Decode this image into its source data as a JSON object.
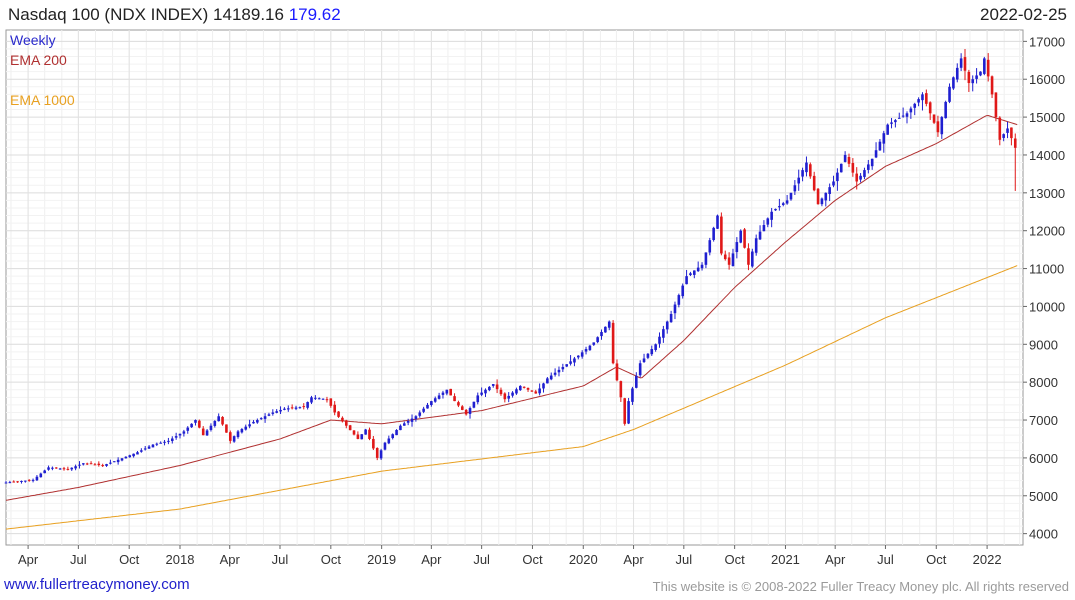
{
  "header": {
    "title": "Nasdaq 100 (NDX INDEX)",
    "last": "14189.16",
    "change": "179.62",
    "date": "2022-02-25"
  },
  "legend": {
    "weekly": "Weekly",
    "ema200": "EMA 200",
    "ema1000": "EMA 1000"
  },
  "footer": {
    "site": "www.fullertreacymoney.com",
    "copyright": "This website is © 2008-2022 Fuller Treacy Money plc. All rights reserved"
  },
  "colors": {
    "up": "#1f1fd0",
    "down": "#e01818",
    "ema200": "#b03030",
    "ema1000": "#e8a020",
    "grid": "#dcdcdc"
  },
  "chart_data": {
    "type": "candlestick",
    "interval": "weekly",
    "x_range": [
      "2017-02-20",
      "2022-03-07"
    ],
    "ylim": [
      3700,
      17300
    ],
    "y_ticks": [
      4000,
      5000,
      6000,
      7000,
      8000,
      9000,
      10000,
      11000,
      12000,
      13000,
      14000,
      15000,
      16000,
      17000
    ],
    "y_axis_side": "right",
    "x_ticks": [
      {
        "label": "Apr",
        "date": "2017-04-01"
      },
      {
        "label": "Jul",
        "date": "2017-07-01"
      },
      {
        "label": "Oct",
        "date": "2017-10-01"
      },
      {
        "label": "2018",
        "date": "2018-01-01"
      },
      {
        "label": "Apr",
        "date": "2018-04-01"
      },
      {
        "label": "Jul",
        "date": "2018-07-01"
      },
      {
        "label": "Oct",
        "date": "2018-10-01"
      },
      {
        "label": "2019",
        "date": "2019-01-01"
      },
      {
        "label": "Apr",
        "date": "2019-04-01"
      },
      {
        "label": "Jul",
        "date": "2019-07-01"
      },
      {
        "label": "Oct",
        "date": "2019-10-01"
      },
      {
        "label": "2020",
        "date": "2020-01-01"
      },
      {
        "label": "Apr",
        "date": "2020-04-01"
      },
      {
        "label": "Jul",
        "date": "2020-07-01"
      },
      {
        "label": "Oct",
        "date": "2020-10-01"
      },
      {
        "label": "2021",
        "date": "2021-01-01"
      },
      {
        "label": "Apr",
        "date": "2021-04-01"
      },
      {
        "label": "Jul",
        "date": "2021-07-01"
      },
      {
        "label": "Oct",
        "date": "2021-10-01"
      },
      {
        "label": "2022",
        "date": "2022-01-01"
      }
    ],
    "grid": true,
    "close_anchors": [
      [
        "2017-02-20",
        5350
      ],
      [
        "2017-03-13",
        5380
      ],
      [
        "2017-04-10",
        5420
      ],
      [
        "2017-05-08",
        5750
      ],
      [
        "2017-06-12",
        5700
      ],
      [
        "2017-07-10",
        5860
      ],
      [
        "2017-08-14",
        5800
      ],
      [
        "2017-09-11",
        5950
      ],
      [
        "2017-10-16",
        6150
      ],
      [
        "2017-11-13",
        6350
      ],
      [
        "2017-12-11",
        6450
      ],
      [
        "2018-01-08",
        6700
      ],
      [
        "2018-01-29",
        7000
      ],
      [
        "2018-02-12",
        6600
      ],
      [
        "2018-03-12",
        7100
      ],
      [
        "2018-04-02",
        6450
      ],
      [
        "2018-04-16",
        6700
      ],
      [
        "2018-05-14",
        6950
      ],
      [
        "2018-06-18",
        7200
      ],
      [
        "2018-07-09",
        7300
      ],
      [
        "2018-08-13",
        7350
      ],
      [
        "2018-08-27",
        7600
      ],
      [
        "2018-09-24",
        7550
      ],
      [
        "2018-10-08",
        7200
      ],
      [
        "2018-10-29",
        6850
      ],
      [
        "2018-11-19",
        6500
      ],
      [
        "2018-12-03",
        6750
      ],
      [
        "2018-12-24",
        6000
      ],
      [
        "2019-01-07",
        6400
      ],
      [
        "2019-02-04",
        6850
      ],
      [
        "2019-03-04",
        7100
      ],
      [
        "2019-04-01",
        7500
      ],
      [
        "2019-04-29",
        7800
      ],
      [
        "2019-05-13",
        7500
      ],
      [
        "2019-06-03",
        7150
      ],
      [
        "2019-06-24",
        7650
      ],
      [
        "2019-07-22",
        7950
      ],
      [
        "2019-08-12",
        7550
      ],
      [
        "2019-09-09",
        7900
      ],
      [
        "2019-10-07",
        7700
      ],
      [
        "2019-10-28",
        8100
      ],
      [
        "2019-11-25",
        8400
      ],
      [
        "2019-12-23",
        8700
      ],
      [
        "2020-01-20",
        9050
      ],
      [
        "2020-02-17",
        9600
      ],
      [
        "2020-02-24",
        8500
      ],
      [
        "2020-03-09",
        7600
      ],
      [
        "2020-03-16",
        6900
      ],
      [
        "2020-03-23",
        7500
      ],
      [
        "2020-04-13",
        8500
      ],
      [
        "2020-05-11",
        9000
      ],
      [
        "2020-06-08",
        9800
      ],
      [
        "2020-07-06",
        10800
      ],
      [
        "2020-08-03",
        11100
      ],
      [
        "2020-08-31",
        12400
      ],
      [
        "2020-09-07",
        11400
      ],
      [
        "2020-09-21",
        11100
      ],
      [
        "2020-10-12",
        12000
      ],
      [
        "2020-10-26",
        11100
      ],
      [
        "2020-11-09",
        11800
      ],
      [
        "2020-12-07",
        12500
      ],
      [
        "2021-01-04",
        12800
      ],
      [
        "2021-02-08",
        13800
      ],
      [
        "2021-03-01",
        12700
      ],
      [
        "2021-03-29",
        13300
      ],
      [
        "2021-04-19",
        14000
      ],
      [
        "2021-05-10",
        13300
      ],
      [
        "2021-06-07",
        13900
      ],
      [
        "2021-07-05",
        14800
      ],
      [
        "2021-08-09",
        15100
      ],
      [
        "2021-09-06",
        15600
      ],
      [
        "2021-10-04",
        14600
      ],
      [
        "2021-10-25",
        15800
      ],
      [
        "2021-11-15",
        16550
      ],
      [
        "2021-11-29",
        15900
      ],
      [
        "2021-12-20",
        16200
      ],
      [
        "2021-12-27",
        16550
      ],
      [
        "2022-01-10",
        15600
      ],
      [
        "2022-01-24",
        14400
      ],
      [
        "2022-02-07",
        14700
      ],
      [
        "2022-02-21",
        14189
      ]
    ],
    "ema200_anchors": [
      [
        "2017-02-20",
        4880
      ],
      [
        "2017-07-01",
        5220
      ],
      [
        "2018-01-01",
        5800
      ],
      [
        "2018-07-01",
        6500
      ],
      [
        "2018-10-01",
        7000
      ],
      [
        "2019-01-01",
        6900
      ],
      [
        "2019-07-01",
        7250
      ],
      [
        "2020-01-01",
        7900
      ],
      [
        "2020-03-01",
        8400
      ],
      [
        "2020-04-15",
        8100
      ],
      [
        "2020-07-01",
        9100
      ],
      [
        "2020-10-01",
        10500
      ],
      [
        "2021-01-01",
        11700
      ],
      [
        "2021-04-01",
        12800
      ],
      [
        "2021-07-01",
        13700
      ],
      [
        "2021-10-01",
        14300
      ],
      [
        "2022-01-01",
        15050
      ],
      [
        "2022-02-25",
        14800
      ]
    ],
    "ema1000_anchors": [
      [
        "2017-02-20",
        4120
      ],
      [
        "2018-01-01",
        4650
      ],
      [
        "2019-01-01",
        5650
      ],
      [
        "2020-01-01",
        6300
      ],
      [
        "2020-04-01",
        6750
      ],
      [
        "2021-01-01",
        8450
      ],
      [
        "2021-07-01",
        9700
      ],
      [
        "2022-02-25",
        11080
      ]
    ]
  }
}
